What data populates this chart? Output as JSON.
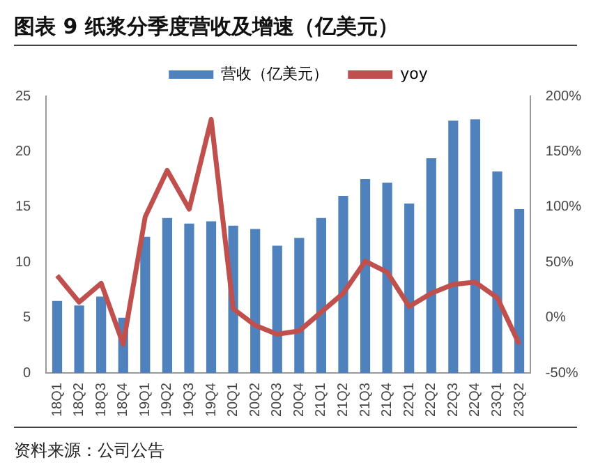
{
  "chart_data": {
    "type": "bar",
    "title": "图表 9 纸浆分季度营收及增速（亿美元）",
    "categories": [
      "18Q1",
      "18Q2",
      "18Q3",
      "18Q4",
      "19Q1",
      "19Q2",
      "19Q3",
      "19Q4",
      "20Q1",
      "20Q2",
      "20Q3",
      "20Q4",
      "21Q1",
      "21Q2",
      "21Q3",
      "21Q4",
      "22Q1",
      "22Q2",
      "22Q3",
      "22Q4",
      "23Q1",
      "23Q2"
    ],
    "series": [
      {
        "name": "营收（亿美元）",
        "color": "#4f81bd",
        "values": [
          6.5,
          6.1,
          6.9,
          5.0,
          12.3,
          14.0,
          13.5,
          13.7,
          13.3,
          13.0,
          11.5,
          12.2,
          14.0,
          16.0,
          17.5,
          17.2,
          15.3,
          19.4,
          22.8,
          22.9,
          18.2,
          14.8
        ]
      },
      {
        "name": "yoy",
        "type": "line",
        "axis": "y2",
        "color": "#c0504d",
        "values": [
          38,
          14,
          31,
          -24,
          91,
          133,
          98,
          179,
          8,
          -7,
          -15,
          -12,
          5,
          22,
          51,
          41,
          10,
          22,
          30,
          32,
          18,
          -24
        ]
      }
    ],
    "ylim": [
      0,
      25
    ],
    "yticks": [
      0,
      5,
      10,
      15,
      20,
      25
    ],
    "y2lim": [
      -50,
      200
    ],
    "y2ticks": [
      {
        "value": -50,
        "label": "-50%"
      },
      {
        "value": 0,
        "label": "0%"
      },
      {
        "value": 50,
        "label": "50%"
      },
      {
        "value": 100,
        "label": "100%"
      },
      {
        "value": 150,
        "label": "150%"
      },
      {
        "value": 200,
        "label": "200%"
      }
    ],
    "legend": "top",
    "grid": false,
    "marker": "none",
    "annotations": [
      "资料来源：公司公告"
    ]
  }
}
